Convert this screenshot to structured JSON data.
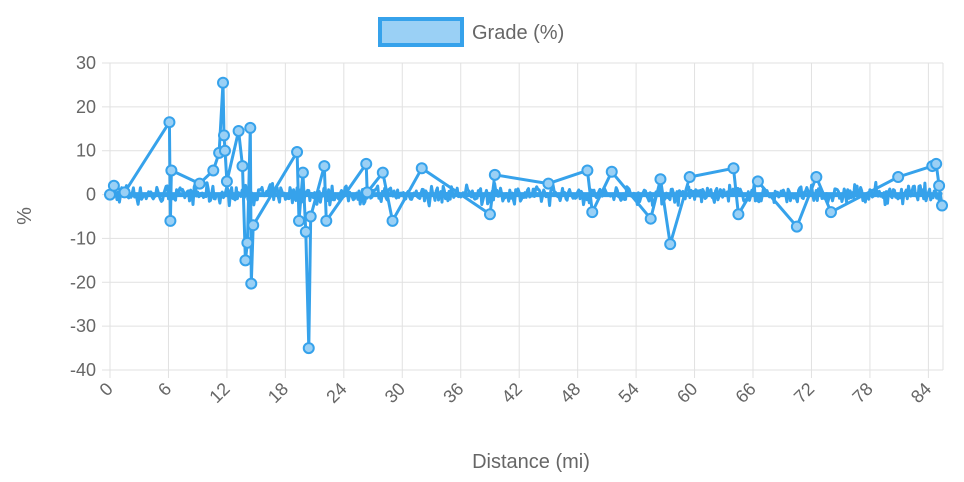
{
  "chart_data": {
    "type": "line",
    "legend": {
      "label": "Grade (%)",
      "position": "top"
    },
    "xlabel": "Distance (mi)",
    "ylabel": "%",
    "xlim": [
      0,
      85.5
    ],
    "ylim": [
      -40,
      30
    ],
    "x_ticks": [
      "0",
      "6",
      "12",
      "18",
      "24",
      "30",
      "36",
      "42",
      "48",
      "54",
      "60",
      "66",
      "72",
      "78",
      "84"
    ],
    "y_ticks": [
      "30",
      "20",
      "10",
      "0",
      "-10",
      "-20",
      "-30",
      "-40"
    ],
    "grid": true,
    "colors": {
      "line": "#36a2eb",
      "fill": "#9ad0f5"
    },
    "series": [
      {
        "name": "Grade (%)",
        "x": [
          0,
          0.4,
          1.5,
          6.1,
          6.2,
          6.3,
          9.2,
          10.6,
          11.2,
          11.6,
          11.7,
          11.8,
          12.0,
          13.2,
          13.6,
          13.9,
          14.1,
          14.4,
          14.5,
          14.7,
          19.2,
          19.4,
          19.8,
          20.1,
          20.4,
          20.6,
          22.0,
          22.2,
          26.3,
          26.4,
          28.0,
          29.0,
          32.0,
          39.0,
          39.5,
          45.0,
          49.0,
          49.5,
          51.5,
          55.5,
          56.5,
          57.5,
          59.5,
          64.0,
          64.5,
          66.5,
          70.5,
          72.5,
          74.0,
          80.9,
          84.4,
          84.8,
          85.1,
          85.4
        ],
        "values": [
          0,
          2,
          0.5,
          16.5,
          -6,
          5.5,
          2.5,
          5.5,
          9.5,
          25.5,
          13.5,
          10,
          3,
          14.5,
          6.5,
          -15,
          -11,
          15.2,
          -20.3,
          -7,
          9.7,
          -6,
          5,
          -8.5,
          -35,
          -5,
          6.5,
          -6,
          7,
          0.5,
          5,
          -6,
          6,
          -4.5,
          4.5,
          2.5,
          5.5,
          -4,
          5.2,
          -5.5,
          3.5,
          -11.3,
          4,
          6,
          -4.5,
          3,
          -7.3,
          4,
          -4,
          4,
          6.5,
          7,
          2,
          -2.5
        ]
      }
    ]
  }
}
